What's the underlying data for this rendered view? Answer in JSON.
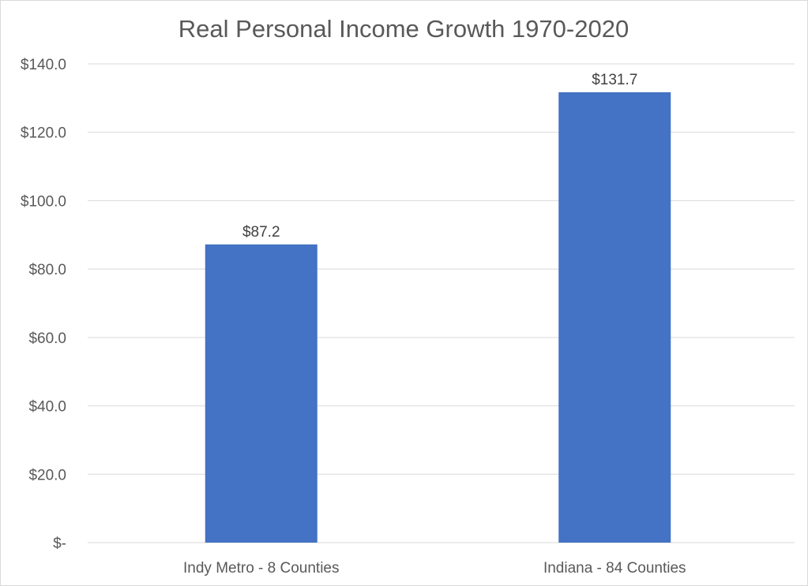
{
  "chart_data": {
    "type": "bar",
    "title": "Real Personal Income Growth 1970-2020",
    "categories": [
      "Indy Metro - 8 Counties",
      "Indiana - 84 Counties"
    ],
    "values": [
      87.2,
      131.7
    ],
    "data_labels": [
      "$87.2",
      "$131.7"
    ],
    "ylim": [
      0,
      140
    ],
    "y_ticks": [
      0,
      20,
      40,
      60,
      80,
      100,
      120,
      140
    ],
    "y_tick_labels": [
      "$-",
      "$20.0",
      "$40.0",
      "$60.0",
      "$80.0",
      "$100.0",
      "$120.0",
      "$140.0"
    ],
    "xlabel": "",
    "ylabel": "",
    "grid": true,
    "legend": "none",
    "bar_color": "#4472C4"
  }
}
